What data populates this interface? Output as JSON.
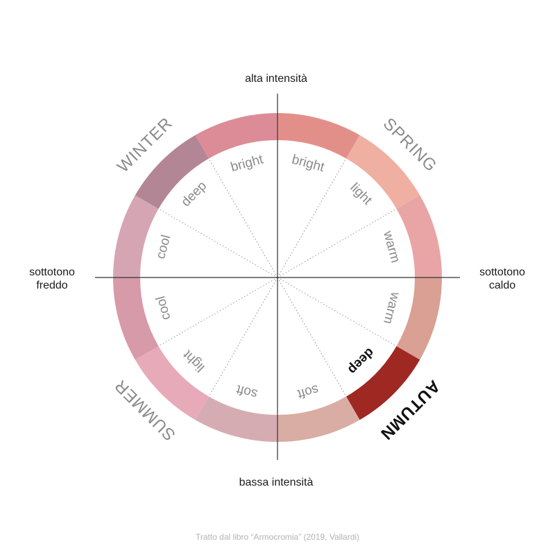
{
  "axes": {
    "top": "alta intensità",
    "bottom": "bassa intensità",
    "left_line1": "sottotono",
    "left_line2": "freddo",
    "right_line1": "sottotono",
    "right_line2": "caldo"
  },
  "credit": "Tratto dal libro “Armocromia” (2019, Vallardi)",
  "colors": {
    "axis": "#333333",
    "divider": "#8c8c8c",
    "label_muted": "#8a8a8a",
    "label_active": "#111111"
  },
  "segments": [
    {
      "label": "bright",
      "color": "#e38f89"
    },
    {
      "label": "light",
      "color": "#efb0a2"
    },
    {
      "label": "warm",
      "color": "#e9a4a5"
    },
    {
      "label": "warm",
      "color": "#d9a093"
    },
    {
      "label": "deep",
      "color": "#a02822",
      "active": true
    },
    {
      "label": "soft",
      "color": "#d9aca4"
    },
    {
      "label": "soft",
      "color": "#d6acb3"
    },
    {
      "label": "light",
      "color": "#e7aab8"
    },
    {
      "label": "cool",
      "color": "#d69aa8"
    },
    {
      "label": "cool",
      "color": "#d6a5b4"
    },
    {
      "label": "deep",
      "color": "#b38696"
    },
    {
      "label": "bright",
      "color": "#dc8c96"
    }
  ],
  "seasons": [
    {
      "name": "SPRING",
      "active": false
    },
    {
      "name": "AUTUMN",
      "active": true
    },
    {
      "name": "SUMMER",
      "active": false
    },
    {
      "name": "WINTER",
      "active": false
    }
  ]
}
